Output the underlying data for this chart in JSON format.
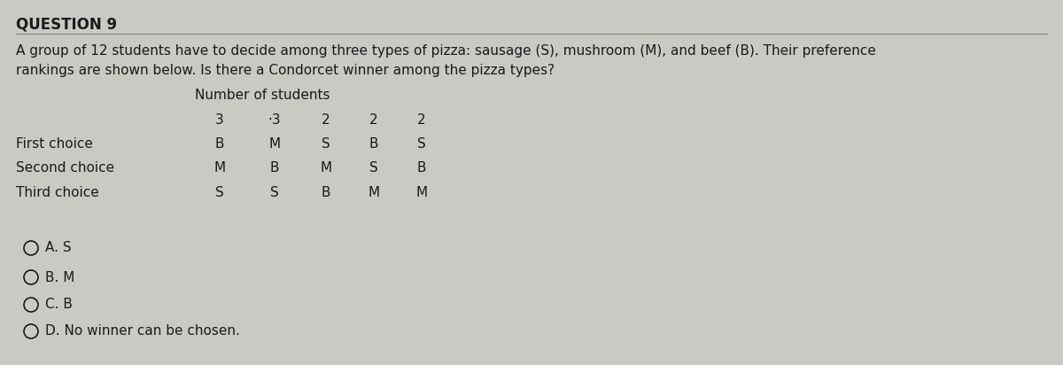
{
  "title": "QUESTION 9",
  "question_line1": "A group of 12 students have to decide among three types of pizza: sausage (S), mushroom (M), and beef (B). Their preference",
  "question_line2": "rankings are shown below. Is there a Condorcet winner among the pizza types?",
  "table_header": "Number of students",
  "columns": [
    "3",
    "·3",
    "2",
    "2",
    "2"
  ],
  "rows": [
    {
      "label": "First choice",
      "values": [
        "B",
        "M",
        "S",
        "B",
        "S"
      ]
    },
    {
      "label": "Second choice",
      "values": [
        "M",
        "B",
        "M",
        "S",
        "B"
      ]
    },
    {
      "label": "Third choice",
      "values": [
        "S",
        "S",
        "B",
        "M",
        "M"
      ]
    }
  ],
  "options": [
    "A. S",
    "B. M",
    "C. B",
    "D. No winner can be chosen."
  ],
  "bg_color": "#cac9c4",
  "text_color": "#1a1a1a",
  "title_fontsize": 12,
  "body_fontsize": 11,
  "table_fontsize": 11,
  "option_fontsize": 11
}
